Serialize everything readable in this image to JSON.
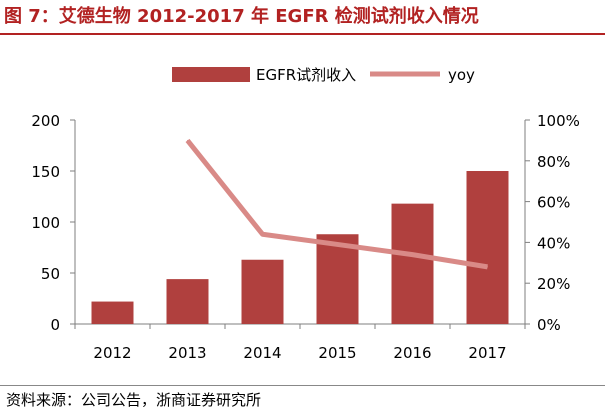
{
  "figure_title": "图 7：艾德生物 2012-2017 年 EGFR 检测试剂收入情况",
  "source_note": "资料来源：公司公告，浙商证券研究所",
  "colors": {
    "bar": "#b0403e",
    "line": "#d98a87",
    "title": "#b22222"
  },
  "chart_data": {
    "type": "bar",
    "categories": [
      "2012",
      "2013",
      "2014",
      "2015",
      "2016",
      "2017"
    ],
    "series": [
      {
        "name": "EGFR试剂收入",
        "type": "bar",
        "axis": "left",
        "values": [
          22,
          44,
          63,
          88,
          118,
          150
        ]
      },
      {
        "name": "yoy",
        "type": "line",
        "axis": "right",
        "values": [
          null,
          0.9,
          0.44,
          0.39,
          0.34,
          0.28
        ]
      }
    ],
    "y_left": {
      "min": 0,
      "max": 200,
      "ticks": [
        0,
        50,
        100,
        150,
        200
      ],
      "tick_labels": [
        "0",
        "50",
        "100",
        "150",
        "200"
      ]
    },
    "y_right": {
      "min": 0,
      "max": 1,
      "ticks": [
        0,
        0.2,
        0.4,
        0.6,
        0.8,
        1.0
      ],
      "tick_labels": [
        "0%",
        "20%",
        "40%",
        "60%",
        "80%",
        "100%"
      ]
    },
    "legend_position": "top",
    "grid": false
  }
}
